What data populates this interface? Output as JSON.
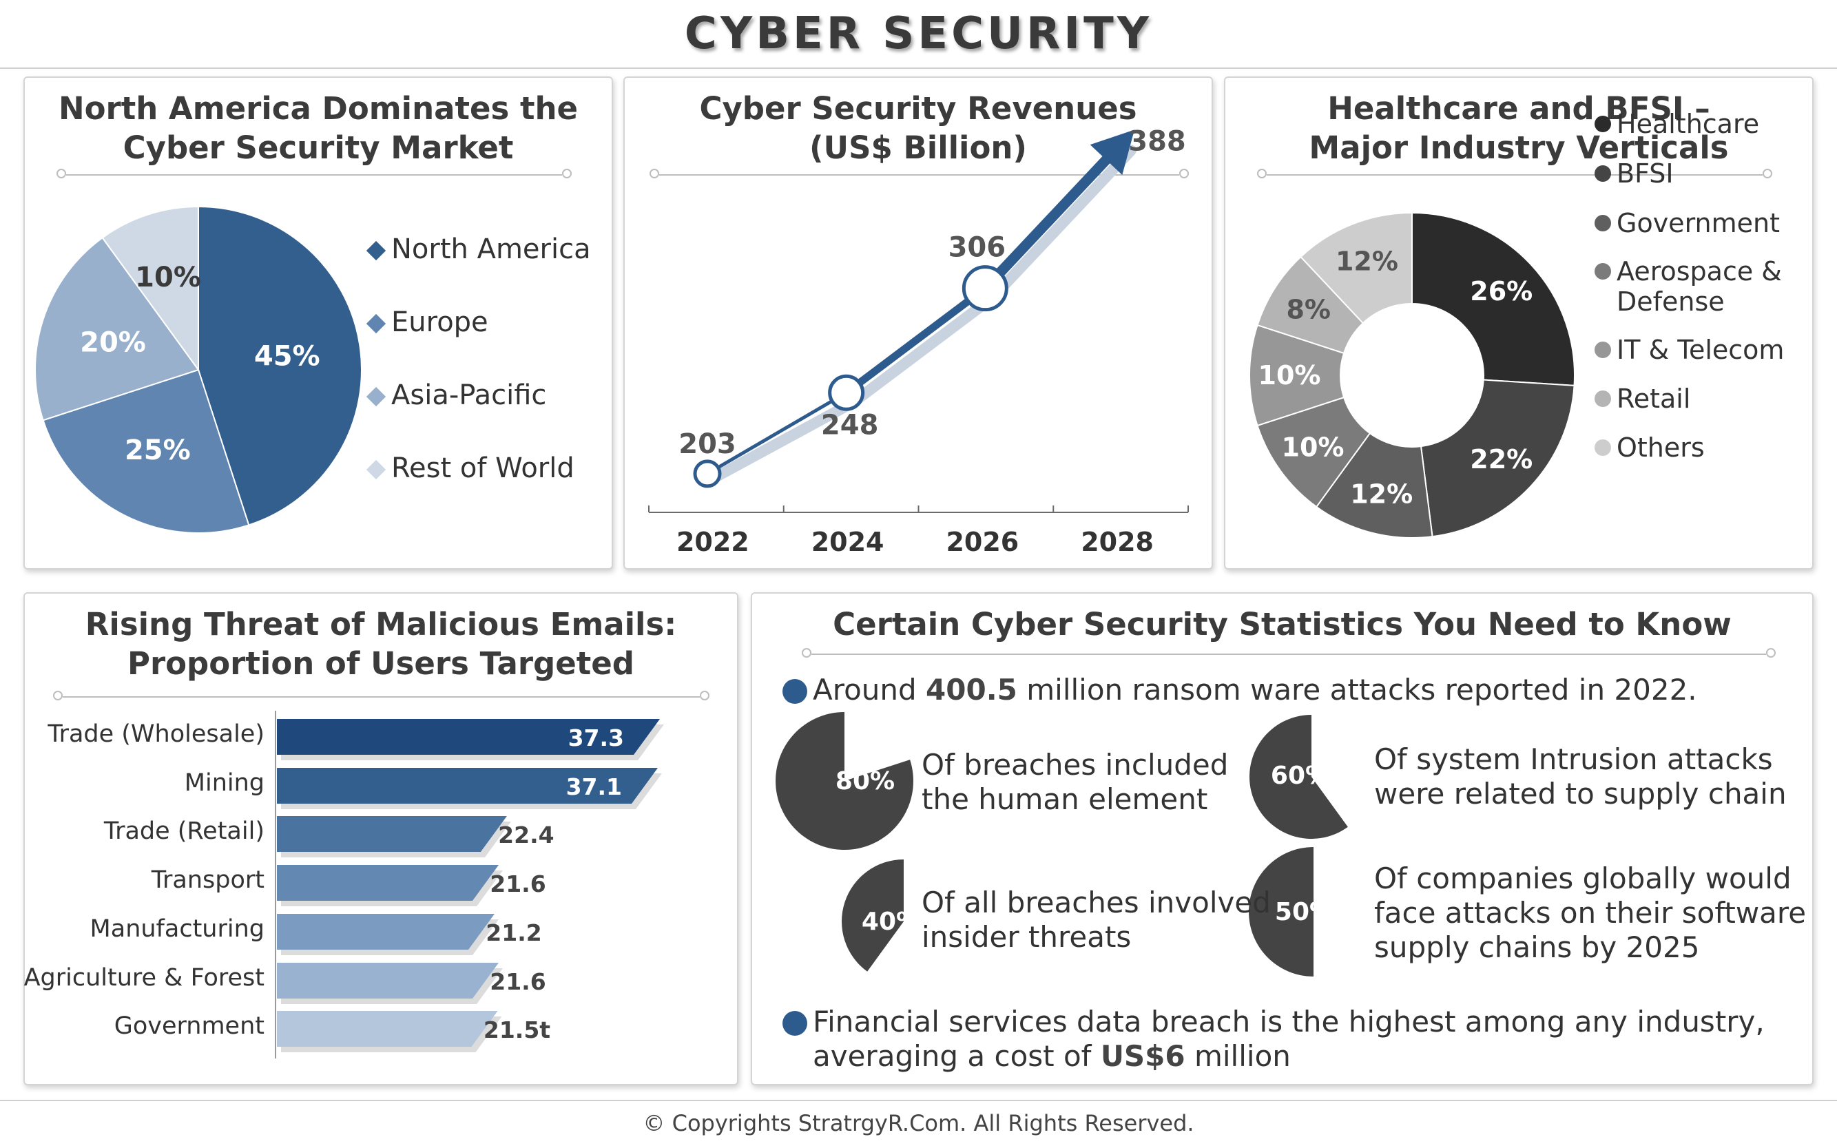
{
  "page": {
    "title": "CYBER SECURITY",
    "copyright": "© Copyrights StratrgyR.Com. All Rights Reserved."
  },
  "panel1": {
    "title": "North America Dominates the\nCyber Security Market",
    "chart_data": {
      "type": "pie",
      "title": "North America Dominates the Cyber Security Market",
      "slices": [
        {
          "label": "North America",
          "value": 45,
          "display": "45%",
          "color": "#335f8e"
        },
        {
          "label": "Europe",
          "value": 25,
          "display": "25%",
          "color": "#6085b1"
        },
        {
          "label": "Asia-Pacific",
          "value": 20,
          "display": "20%",
          "color": "#99b0cc"
        },
        {
          "label": "Rest of World",
          "value": 10,
          "display": "10%",
          "color": "#cfd9e5"
        }
      ]
    }
  },
  "panel2": {
    "title": "Cyber Security Revenues\n(US$ Billion)",
    "chart_data": {
      "type": "line",
      "title": "Cyber Security Revenues (US$ Billion)",
      "x": [
        "2022",
        "2024",
        "2026",
        "2028"
      ],
      "series": [
        {
          "values": [
            203,
            248,
            306,
            388
          ],
          "labels": [
            "203",
            "248",
            "306",
            "388"
          ]
        }
      ],
      "ylim": [
        180,
        400
      ],
      "colors": {
        "line": "#2e5b8e",
        "marker_fill": "#ffffff"
      }
    }
  },
  "panel3": {
    "title": "Healthcare and BFSI –\nMajor Industry Verticals",
    "chart_data": {
      "type": "pie",
      "subtype": "donut",
      "title": "Healthcare and BFSI – Major Industry Verticals",
      "slices": [
        {
          "label": "Healthcare",
          "value": 26,
          "display": "26%",
          "color": "#2b2b2b"
        },
        {
          "label": "BFSI",
          "value": 22,
          "display": "22%",
          "color": "#454545"
        },
        {
          "label": "Government",
          "value": 12,
          "display": "12%",
          "color": "#5f5f5f"
        },
        {
          "label": "Aerospace & Defense",
          "value": 10,
          "display": "10%",
          "color": "#7b7b7b"
        },
        {
          "label": "IT & Telecom",
          "value": 10,
          "display": "10%",
          "color": "#979797"
        },
        {
          "label": "Retail",
          "value": 8,
          "display": "8%",
          "color": "#b4b4b4"
        },
        {
          "label": "Others",
          "value": 12,
          "display": "12%",
          "color": "#cdcdcd"
        }
      ],
      "legend_labels": [
        "Healthcare",
        "BFSI",
        "Government",
        "Aerospace &\nDefense",
        "IT & Telecom",
        "Retail",
        "Others"
      ]
    }
  },
  "panel4": {
    "title": "Rising Threat of Malicious Emails:\nProportion of Users Targeted",
    "chart_data": {
      "type": "bar",
      "orientation": "horizontal",
      "title": "Rising Threat of Malicious Emails: Proportion of Users Targeted",
      "categories": [
        "Trade (Wholesale)",
        "Mining",
        "Trade (Retail)",
        "Transport",
        "Manufacturing",
        "Agriculture & Forest",
        "Government"
      ],
      "values": [
        37.3,
        37.1,
        22.4,
        21.6,
        21.2,
        21.6,
        21.5
      ],
      "value_labels": [
        "37.3",
        "37.1",
        "22.4",
        "21.6",
        "21.2",
        "21.6",
        "21.5t"
      ],
      "colors": [
        "#1f497d",
        "#335f8e",
        "#4a73a0",
        "#6388b1",
        "#7b9bc0",
        "#98b2cf",
        "#b4c6dc"
      ],
      "xlim": [
        0,
        40
      ]
    }
  },
  "panel5": {
    "title": "Certain Cyber Security Statistics You Need to Know",
    "bullet1": {
      "pre": "Around ",
      "strong": "400.5",
      "post": " million ransom ware attacks reported in 2022."
    },
    "stats": [
      {
        "pct": 80,
        "label": "80%",
        "text": "Of breaches included\nthe human element"
      },
      {
        "pct": 60,
        "label": "60%",
        "text": "Of system Intrusion attacks\nwere related to supply chain"
      },
      {
        "pct": 40,
        "label": "40%",
        "text": "Of all breaches involved\ninsider threats"
      },
      {
        "pct": 50,
        "label": "50%",
        "text": "Of companies globally would\nface attacks on their software\nsupply chains by 2025"
      }
    ],
    "bullet2": {
      "line1": "Financial services data breach is the highest among any industry,",
      "pre": "averaging a cost of ",
      "strong": "US$6",
      "post": " million"
    },
    "colors": {
      "bullet": "#2e5b8e",
      "pie": "#444444"
    }
  }
}
